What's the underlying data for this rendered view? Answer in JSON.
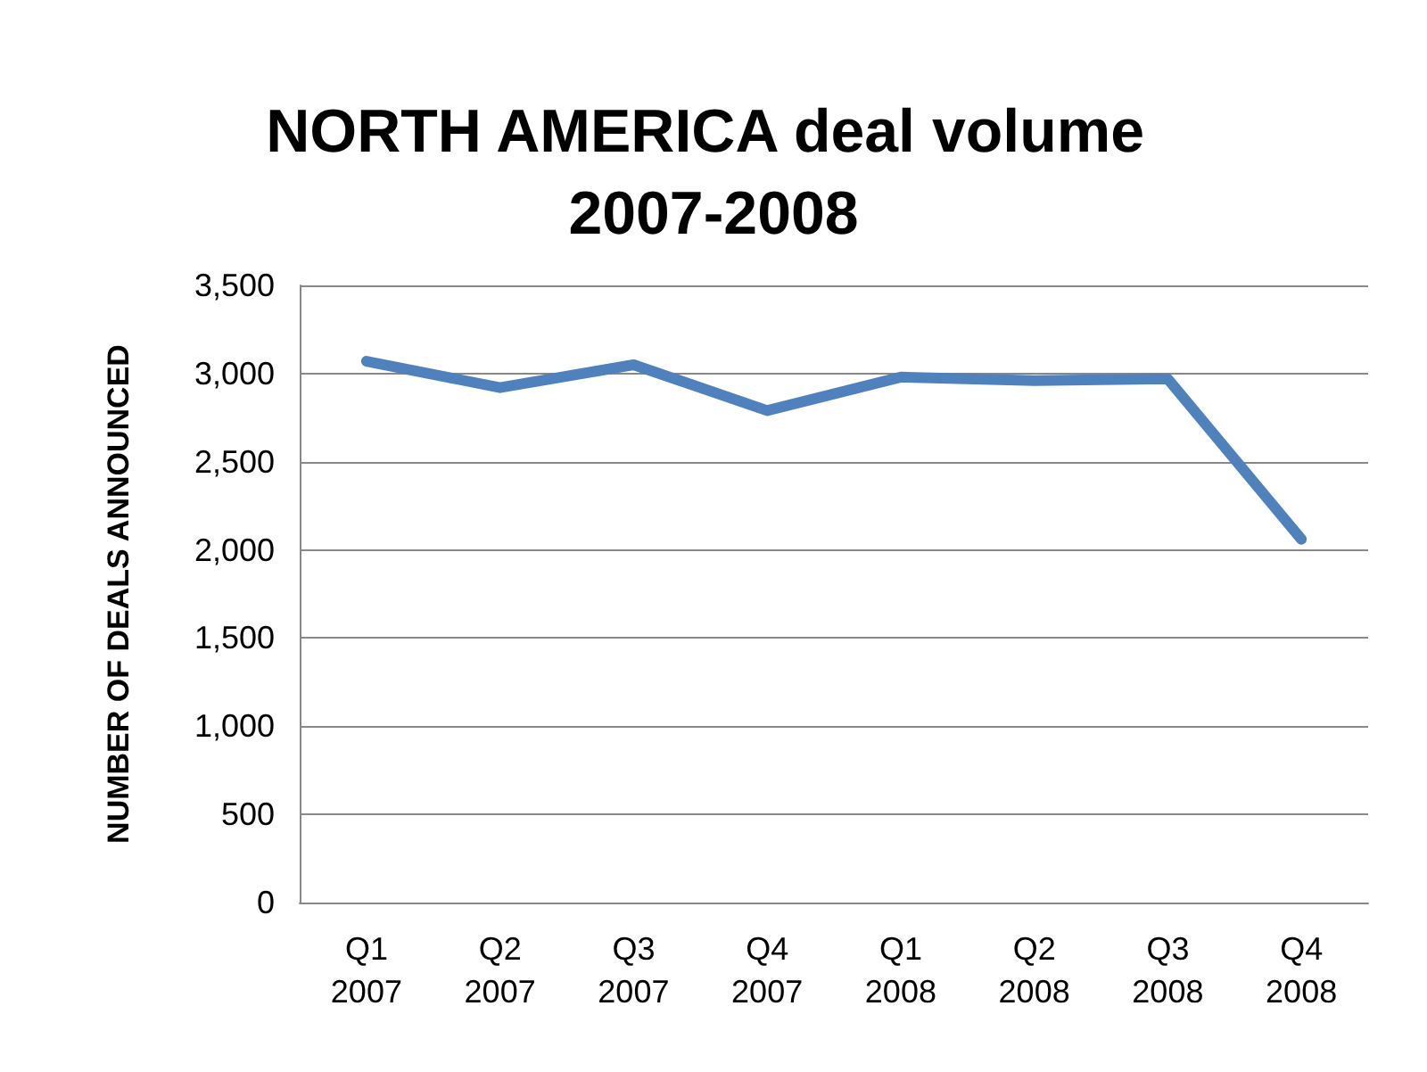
{
  "chart_data": {
    "type": "line",
    "title": "NORTH AMERICA deal volume 2007-2008",
    "ylabel": "NUMBER OF DEALS ANNOUNCED",
    "categories": [
      "Q1 2007",
      "Q2 2007",
      "Q3 2007",
      "Q4 2007",
      "Q1 2008",
      "Q2 2008",
      "Q3 2008",
      "Q4 2008"
    ],
    "series": [
      {
        "color": "#4f81bd",
        "values": [
          3070,
          2920,
          3050,
          2790,
          2980,
          2960,
          2970,
          2060
        ]
      }
    ],
    "ylim": [
      0,
      3500
    ],
    "yticks": [
      {
        "value": 0,
        "label": "0"
      },
      {
        "value": 500,
        "label": "500"
      },
      {
        "value": 1000,
        "label": "1,000"
      },
      {
        "value": 1500,
        "label": "1,500"
      },
      {
        "value": 2000,
        "label": "2,000"
      },
      {
        "value": 2500,
        "label": "2,500"
      },
      {
        "value": 3000,
        "label": "3,000"
      },
      {
        "value": 3500,
        "label": "3,500"
      }
    ],
    "grid": "y",
    "marker": "none",
    "line_style": "solid"
  }
}
